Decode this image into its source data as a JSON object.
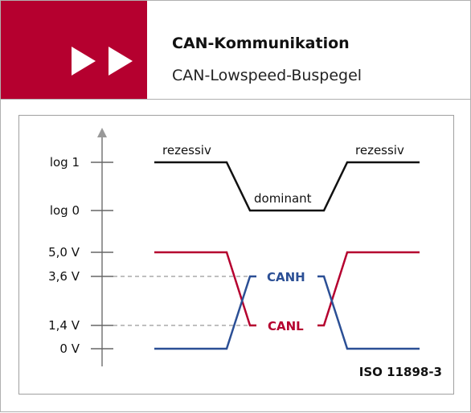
{
  "header": {
    "title": "CAN-Kommunikation",
    "subtitle": "CAN-Lowspeed-Buspegel",
    "accent_color": "#b5002f",
    "icon": "fast-forward-icon"
  },
  "diagram": {
    "logic_levels": {
      "high_label": "log 1",
      "low_label": "log 0",
      "recessive_left": "rezessiv",
      "dominant": "dominant",
      "recessive_right": "rezessiv"
    },
    "voltage_levels": [
      "5,0 V",
      "3,6 V",
      "1,4 V",
      "0 V"
    ],
    "signals": {
      "canh": {
        "label": "CANH",
        "color": "#2b4f95"
      },
      "canl": {
        "label": "CANL",
        "color": "#b5002f"
      }
    },
    "standard": "ISO 11898-3"
  }
}
